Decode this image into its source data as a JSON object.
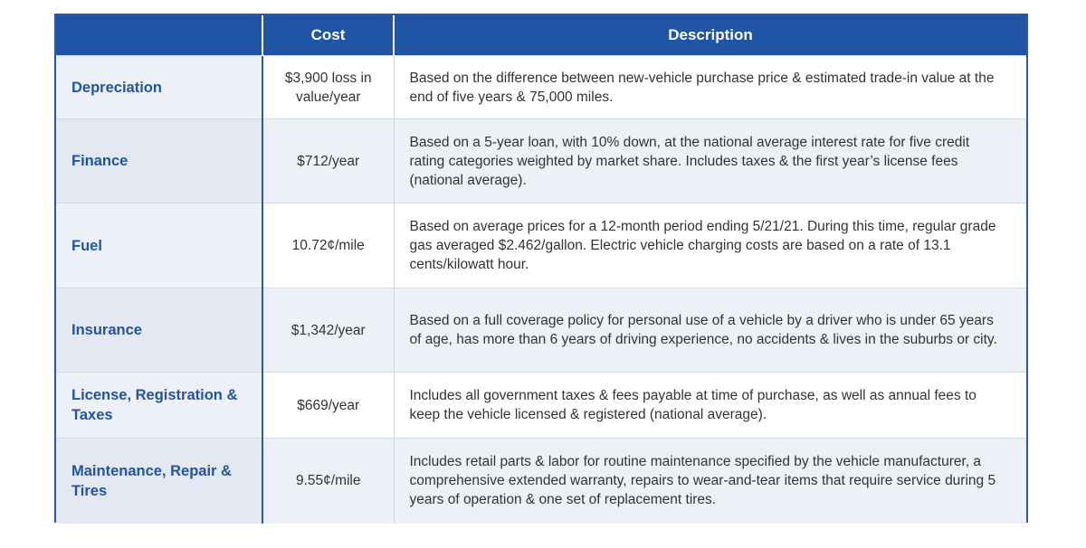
{
  "header": {
    "col1": "",
    "col2": "Cost",
    "col3": "Description"
  },
  "rows": [
    {
      "category": "Depreciation",
      "cost": "$3,900 loss in value/year",
      "description": "Based on the difference between new-vehicle purchase price & estimated trade-in value at the end of five years & 75,000 miles."
    },
    {
      "category": "Finance",
      "cost": "$712/year",
      "description": "Based on a 5-year loan, with 10% down, at the national average interest rate for five credit rating categories weighted by market share. Includes taxes & the first year’s license fees (national average)."
    },
    {
      "category": "Fuel",
      "cost": "10.72¢/mile",
      "description": "Based on average prices for a 12-month period ending 5/21/21. During this time, regular grade gas averaged $2.462/gallon. Electric vehicle charging costs are based on a rate of 13.1 cents/kilowatt hour."
    },
    {
      "category": "Insurance",
      "cost": "$1,342/year",
      "description": "Based on a full coverage policy for personal use of a vehicle by a driver who is under 65 years of age, has more than 6 years of driving experience, no accidents & lives in the suburbs or city."
    },
    {
      "category": "License, Registration & Taxes",
      "cost": "$669/year",
      "description": "Includes all government taxes & fees payable at time of purchase, as well as annual fees to keep the vehicle licensed & registered (national average)."
    },
    {
      "category": "Maintenance, Repair & Tires",
      "cost": "9.55¢/mile",
      "description": "Includes retail parts & labor for routine maintenance specified by the vehicle manufacturer, a comprehensive extended warranty, repairs to wear-and-tear items that require service during 5 years of operation & one set of replacement tires."
    }
  ]
}
